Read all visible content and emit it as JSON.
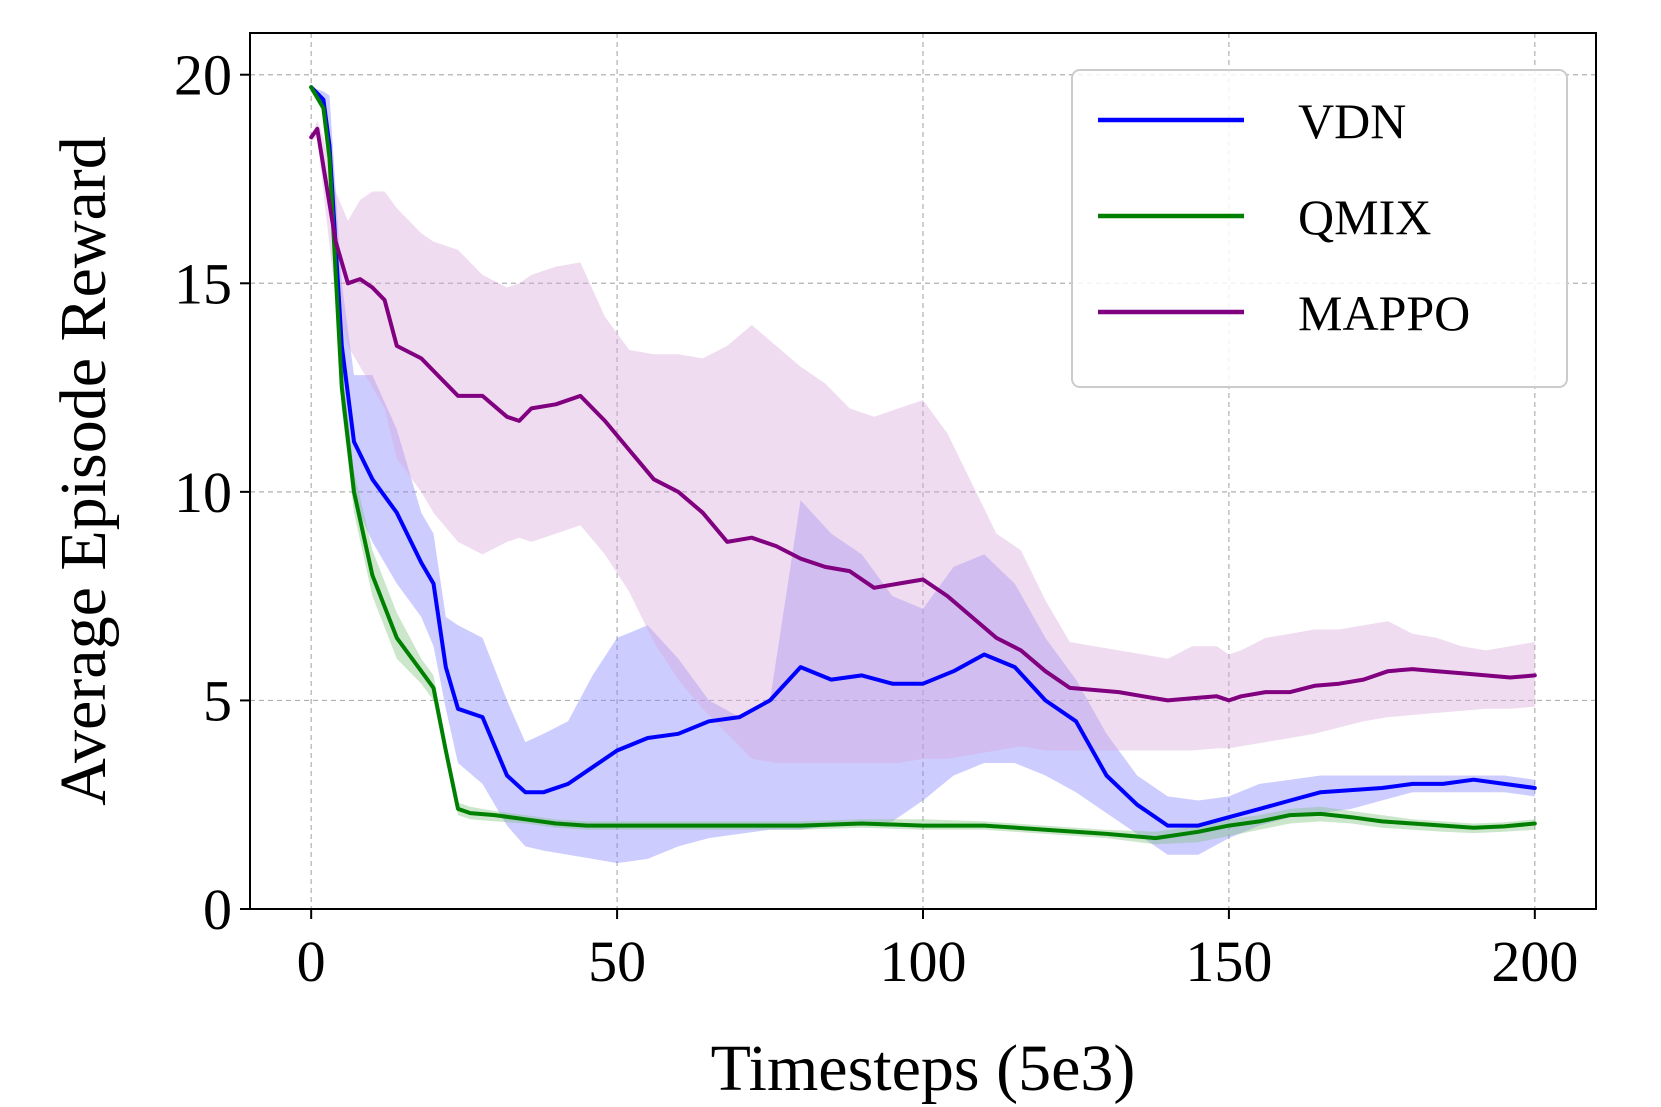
{
  "chart_data": {
    "type": "line",
    "title": "",
    "xlabel": "Timesteps (5e3)",
    "ylabel": "Average Episode Reward",
    "xlim": [
      -10,
      210
    ],
    "ylim": [
      0,
      21
    ],
    "xticks": [
      0,
      50,
      100,
      150,
      200
    ],
    "yticks": [
      0,
      5,
      10,
      15,
      20
    ],
    "xtick_labels": [
      "0",
      "50",
      "100",
      "150",
      "200"
    ],
    "ytick_labels": [
      "0",
      "5",
      "10",
      "15",
      "20"
    ],
    "grid": true,
    "legend_position": "top-right",
    "series": [
      {
        "name": "VDN",
        "color": "#0000ff",
        "band_color": "#7f7fff",
        "x": [
          0,
          2,
          3,
          5,
          7,
          10,
          14,
          18,
          20,
          22,
          24,
          28,
          32,
          35,
          38,
          42,
          46,
          50,
          55,
          60,
          65,
          70,
          75,
          80,
          85,
          90,
          95,
          100,
          105,
          110,
          115,
          120,
          125,
          130,
          135,
          140,
          145,
          150,
          155,
          160,
          165,
          170,
          175,
          180,
          185,
          190,
          195,
          200
        ],
        "y": [
          19.7,
          19.4,
          18.3,
          13.5,
          11.2,
          10.3,
          9.5,
          8.3,
          7.8,
          5.8,
          4.8,
          4.6,
          3.2,
          2.8,
          2.8,
          3.0,
          3.4,
          3.8,
          4.1,
          4.2,
          4.5,
          4.6,
          5.0,
          5.8,
          5.5,
          5.6,
          5.4,
          5.4,
          5.7,
          6.1,
          5.8,
          5.0,
          4.5,
          3.2,
          2.5,
          2.0,
          2.0,
          2.2,
          2.4,
          2.6,
          2.8,
          2.85,
          2.9,
          3.0,
          3.0,
          3.1,
          3.0,
          2.9
        ],
        "upper": [
          19.7,
          19.6,
          19.5,
          15.0,
          12.8,
          12.8,
          11.5,
          9.5,
          9.0,
          7.0,
          6.8,
          6.5,
          5.0,
          4.0,
          4.2,
          4.5,
          5.6,
          6.5,
          6.8,
          6.0,
          5.0,
          4.6,
          5.0,
          9.8,
          9.0,
          8.5,
          7.5,
          7.2,
          8.2,
          8.5,
          7.8,
          6.5,
          5.5,
          4.2,
          3.2,
          2.7,
          2.6,
          2.7,
          3.0,
          3.1,
          3.2,
          3.2,
          3.2,
          3.2,
          3.2,
          3.2,
          3.2,
          3.1
        ],
        "lower": [
          19.6,
          19.2,
          18.0,
          12.0,
          9.8,
          8.8,
          7.8,
          7.0,
          6.3,
          4.8,
          3.5,
          3.0,
          2.0,
          1.5,
          1.4,
          1.3,
          1.2,
          1.1,
          1.2,
          1.5,
          1.7,
          1.8,
          1.9,
          1.9,
          2.0,
          2.0,
          2.1,
          2.6,
          3.2,
          3.5,
          3.5,
          3.2,
          2.8,
          2.3,
          1.8,
          1.3,
          1.3,
          1.7,
          2.0,
          2.2,
          2.3,
          2.4,
          2.6,
          2.8,
          2.8,
          2.8,
          2.8,
          2.7
        ]
      },
      {
        "name": "QMIX",
        "color": "#008000",
        "band_color": "#7fc07f",
        "x": [
          0,
          2,
          3,
          5,
          7,
          10,
          14,
          18,
          20,
          22,
          24,
          26,
          30,
          35,
          40,
          45,
          50,
          60,
          70,
          80,
          90,
          100,
          110,
          120,
          130,
          138,
          145,
          150,
          155,
          160,
          165,
          170,
          175,
          180,
          185,
          190,
          195,
          200
        ],
        "y": [
          19.7,
          19.2,
          18.0,
          12.5,
          10.0,
          8.0,
          6.5,
          5.7,
          5.3,
          3.8,
          2.4,
          2.3,
          2.25,
          2.15,
          2.05,
          2.0,
          2.0,
          2.0,
          2.0,
          2.0,
          2.05,
          2.0,
          2.0,
          1.9,
          1.8,
          1.7,
          1.85,
          2.0,
          2.1,
          2.25,
          2.28,
          2.2,
          2.1,
          2.05,
          2.0,
          1.95,
          1.98,
          2.05
        ],
        "upper": [
          19.7,
          19.3,
          18.3,
          13.0,
          10.5,
          8.6,
          7.1,
          6.0,
          5.6,
          4.0,
          2.55,
          2.45,
          2.35,
          2.25,
          2.15,
          2.1,
          2.1,
          2.1,
          2.1,
          2.1,
          2.15,
          2.15,
          2.1,
          2.0,
          1.9,
          1.85,
          2.0,
          2.15,
          2.25,
          2.4,
          2.45,
          2.35,
          2.25,
          2.15,
          2.1,
          2.05,
          2.08,
          2.15
        ],
        "lower": [
          19.6,
          19.1,
          17.6,
          12.0,
          9.5,
          7.5,
          6.0,
          5.4,
          5.0,
          3.6,
          2.25,
          2.15,
          2.1,
          2.05,
          1.95,
          1.9,
          1.9,
          1.9,
          1.9,
          1.9,
          1.95,
          1.9,
          1.9,
          1.8,
          1.7,
          1.55,
          1.6,
          1.75,
          1.9,
          2.05,
          2.1,
          2.05,
          1.95,
          1.9,
          1.85,
          1.82,
          1.85,
          1.9
        ]
      },
      {
        "name": "MAPPO",
        "color": "#800080",
        "band_color": "#d9a8d9",
        "x": [
          0,
          1,
          2,
          4,
          6,
          8,
          10,
          12,
          14,
          18,
          20,
          24,
          28,
          32,
          34,
          36,
          40,
          44,
          48,
          52,
          56,
          60,
          64,
          68,
          72,
          76,
          80,
          84,
          88,
          92,
          96,
          100,
          104,
          108,
          112,
          116,
          120,
          124,
          128,
          132,
          136,
          140,
          144,
          148,
          150,
          152,
          156,
          160,
          164,
          168,
          172,
          176,
          180,
          184,
          188,
          192,
          196,
          200
        ],
        "y": [
          18.5,
          18.7,
          17.8,
          16.0,
          15.0,
          15.1,
          14.9,
          14.6,
          13.5,
          13.2,
          12.9,
          12.3,
          12.3,
          11.8,
          11.7,
          12.0,
          12.1,
          12.3,
          11.7,
          11.0,
          10.3,
          10.0,
          9.5,
          8.8,
          8.9,
          8.7,
          8.4,
          8.2,
          8.1,
          7.7,
          7.8,
          7.9,
          7.5,
          7.0,
          6.5,
          6.2,
          5.7,
          5.3,
          5.25,
          5.2,
          5.1,
          5.0,
          5.05,
          5.1,
          5.0,
          5.1,
          5.2,
          5.2,
          5.35,
          5.4,
          5.5,
          5.7,
          5.75,
          5.7,
          5.65,
          5.6,
          5.55,
          5.6
        ],
        "upper": [
          18.5,
          18.9,
          18.5,
          17.2,
          16.5,
          17.0,
          17.2,
          17.2,
          16.8,
          16.2,
          16.0,
          15.8,
          15.2,
          14.9,
          15.0,
          15.2,
          15.4,
          15.5,
          14.2,
          13.4,
          13.3,
          13.3,
          13.2,
          13.5,
          14.0,
          13.5,
          13.0,
          12.6,
          12.0,
          11.8,
          12.0,
          12.2,
          11.4,
          10.2,
          9.0,
          8.6,
          7.4,
          6.4,
          6.3,
          6.2,
          6.1,
          6.0,
          6.3,
          6.3,
          6.1,
          6.2,
          6.5,
          6.6,
          6.7,
          6.7,
          6.8,
          6.9,
          6.6,
          6.5,
          6.3,
          6.2,
          6.3,
          6.4
        ],
        "lower": [
          18.4,
          18.5,
          17.2,
          14.6,
          13.5,
          13.0,
          12.5,
          12.0,
          10.8,
          10.0,
          9.5,
          8.8,
          8.5,
          8.8,
          8.9,
          8.8,
          9.0,
          9.2,
          8.5,
          7.6,
          6.4,
          5.5,
          4.8,
          4.2,
          3.6,
          3.5,
          3.5,
          3.5,
          3.5,
          3.5,
          3.5,
          3.6,
          3.6,
          3.7,
          3.8,
          3.9,
          3.8,
          3.8,
          3.8,
          3.8,
          3.8,
          3.8,
          3.8,
          3.85,
          3.85,
          3.9,
          4.0,
          4.1,
          4.2,
          4.35,
          4.5,
          4.6,
          4.65,
          4.7,
          4.75,
          4.8,
          4.8,
          4.85
        ]
      }
    ]
  }
}
